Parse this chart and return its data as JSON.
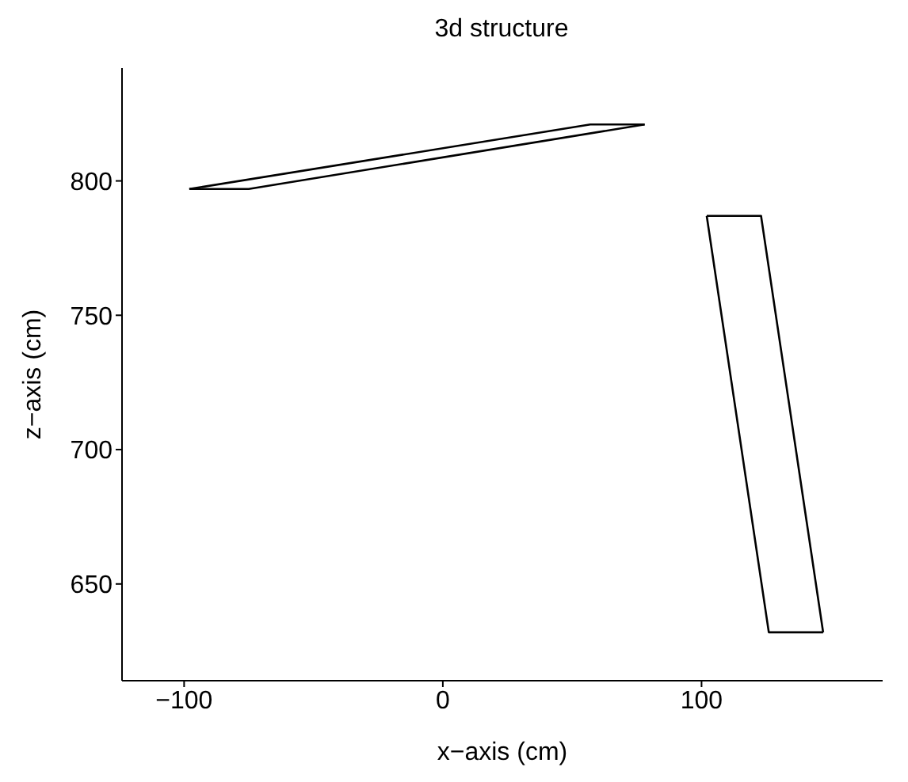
{
  "chart_data": {
    "type": "line",
    "title": "3d structure",
    "xlabel": "x−axis (cm)",
    "ylabel": "z−axis (cm)",
    "series": [
      {
        "color": "#000000",
        "x": [
          -98,
          57,
          78
        ],
        "values": [
          797,
          821,
          821
        ]
      },
      {
        "color": "#000000",
        "x": [
          -98,
          -75,
          78
        ],
        "values": [
          797,
          797,
          821
        ]
      },
      {
        "color": "#000000",
        "x": [
          102,
          123,
          147
        ],
        "values": [
          787,
          787,
          632
        ]
      },
      {
        "color": "#000000",
        "x": [
          102,
          126,
          147
        ],
        "values": [
          787,
          632,
          632
        ]
      }
    ],
    "xlim": [
      -124,
      170
    ],
    "ylim": [
      614,
      842
    ],
    "xticks": [
      -100,
      0,
      100
    ],
    "yticks": [
      650,
      700,
      750,
      800
    ],
    "grid": false
  }
}
